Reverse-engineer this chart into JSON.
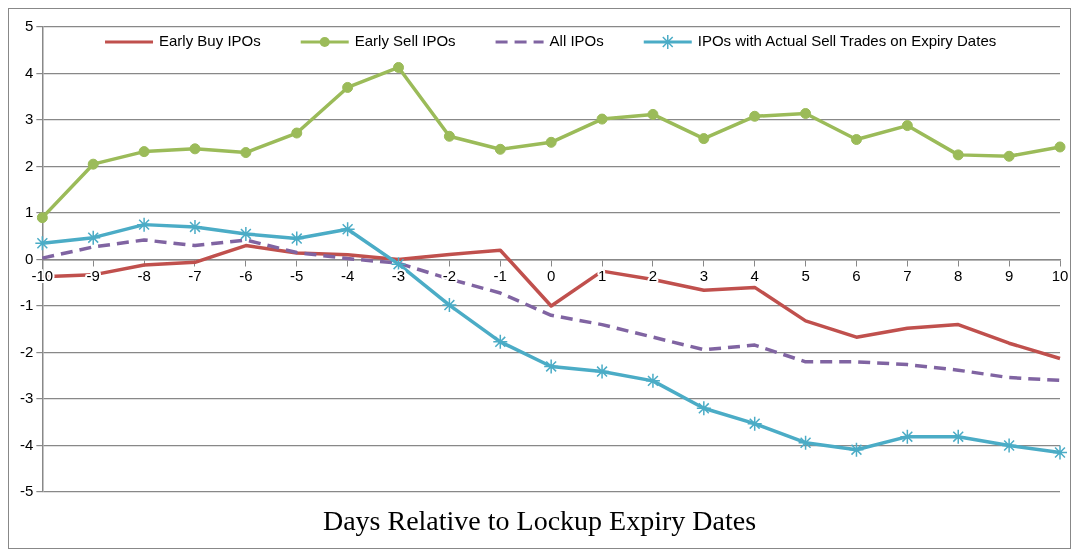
{
  "chart_data": {
    "type": "line",
    "xlabel": "Days Relative to Lockup Expiry Dates",
    "categories": [
      "-10",
      "-9",
      "-8",
      "-7",
      "-6",
      "-5",
      "-4",
      "-3",
      "-2",
      "-1",
      "0",
      "1",
      "2",
      "3",
      "4",
      "5",
      "6",
      "7",
      "8",
      "9",
      "10"
    ],
    "series": [
      {
        "name": "Early Buy IPOs",
        "color": "#c0504d",
        "marker": "none",
        "line_style": "solid",
        "values": [
          -0.37,
          -0.33,
          -0.12,
          -0.06,
          0.3,
          0.14,
          0.1,
          0.0,
          0.11,
          0.2,
          -1.0,
          -0.25,
          -0.43,
          -0.66,
          -0.6,
          -1.32,
          -1.67,
          -1.48,
          -1.4,
          -1.8,
          -2.13
        ]
      },
      {
        "name": "Early Sell IPOs",
        "color": "#9bbb59",
        "marker": "circle",
        "line_style": "solid",
        "values": [
          0.9,
          2.05,
          2.32,
          2.38,
          2.3,
          2.72,
          3.7,
          4.13,
          2.65,
          2.37,
          2.52,
          3.02,
          3.12,
          2.6,
          3.08,
          3.14,
          2.58,
          2.88,
          2.25,
          2.22,
          2.42
        ]
      },
      {
        "name": "All IPOs",
        "color": "#8064a2",
        "marker": "none",
        "line_style": "dashed",
        "values": [
          0.03,
          0.27,
          0.42,
          0.3,
          0.42,
          0.15,
          0.02,
          -0.08,
          -0.42,
          -0.72,
          -1.2,
          -1.4,
          -1.67,
          -1.94,
          -1.84,
          -2.2,
          -2.2,
          -2.26,
          -2.38,
          -2.54,
          -2.6
        ]
      },
      {
        "name": "IPOs with Actual Sell Trades on Expiry Dates",
        "color": "#4bacc6",
        "marker": "cross",
        "line_style": "solid",
        "values": [
          0.35,
          0.47,
          0.75,
          0.7,
          0.55,
          0.45,
          0.65,
          -0.1,
          -0.98,
          -1.77,
          -2.3,
          -2.41,
          -2.61,
          -3.2,
          -3.53,
          -3.94,
          -4.09,
          -3.81,
          -3.81,
          -4.0,
          -4.15
        ]
      }
    ],
    "ylim": [
      -5,
      5
    ],
    "yticks": [
      -5,
      -4,
      -3,
      -2,
      -1,
      0,
      1,
      2,
      3,
      4,
      5
    ],
    "grid": "y",
    "legend": "top"
  }
}
